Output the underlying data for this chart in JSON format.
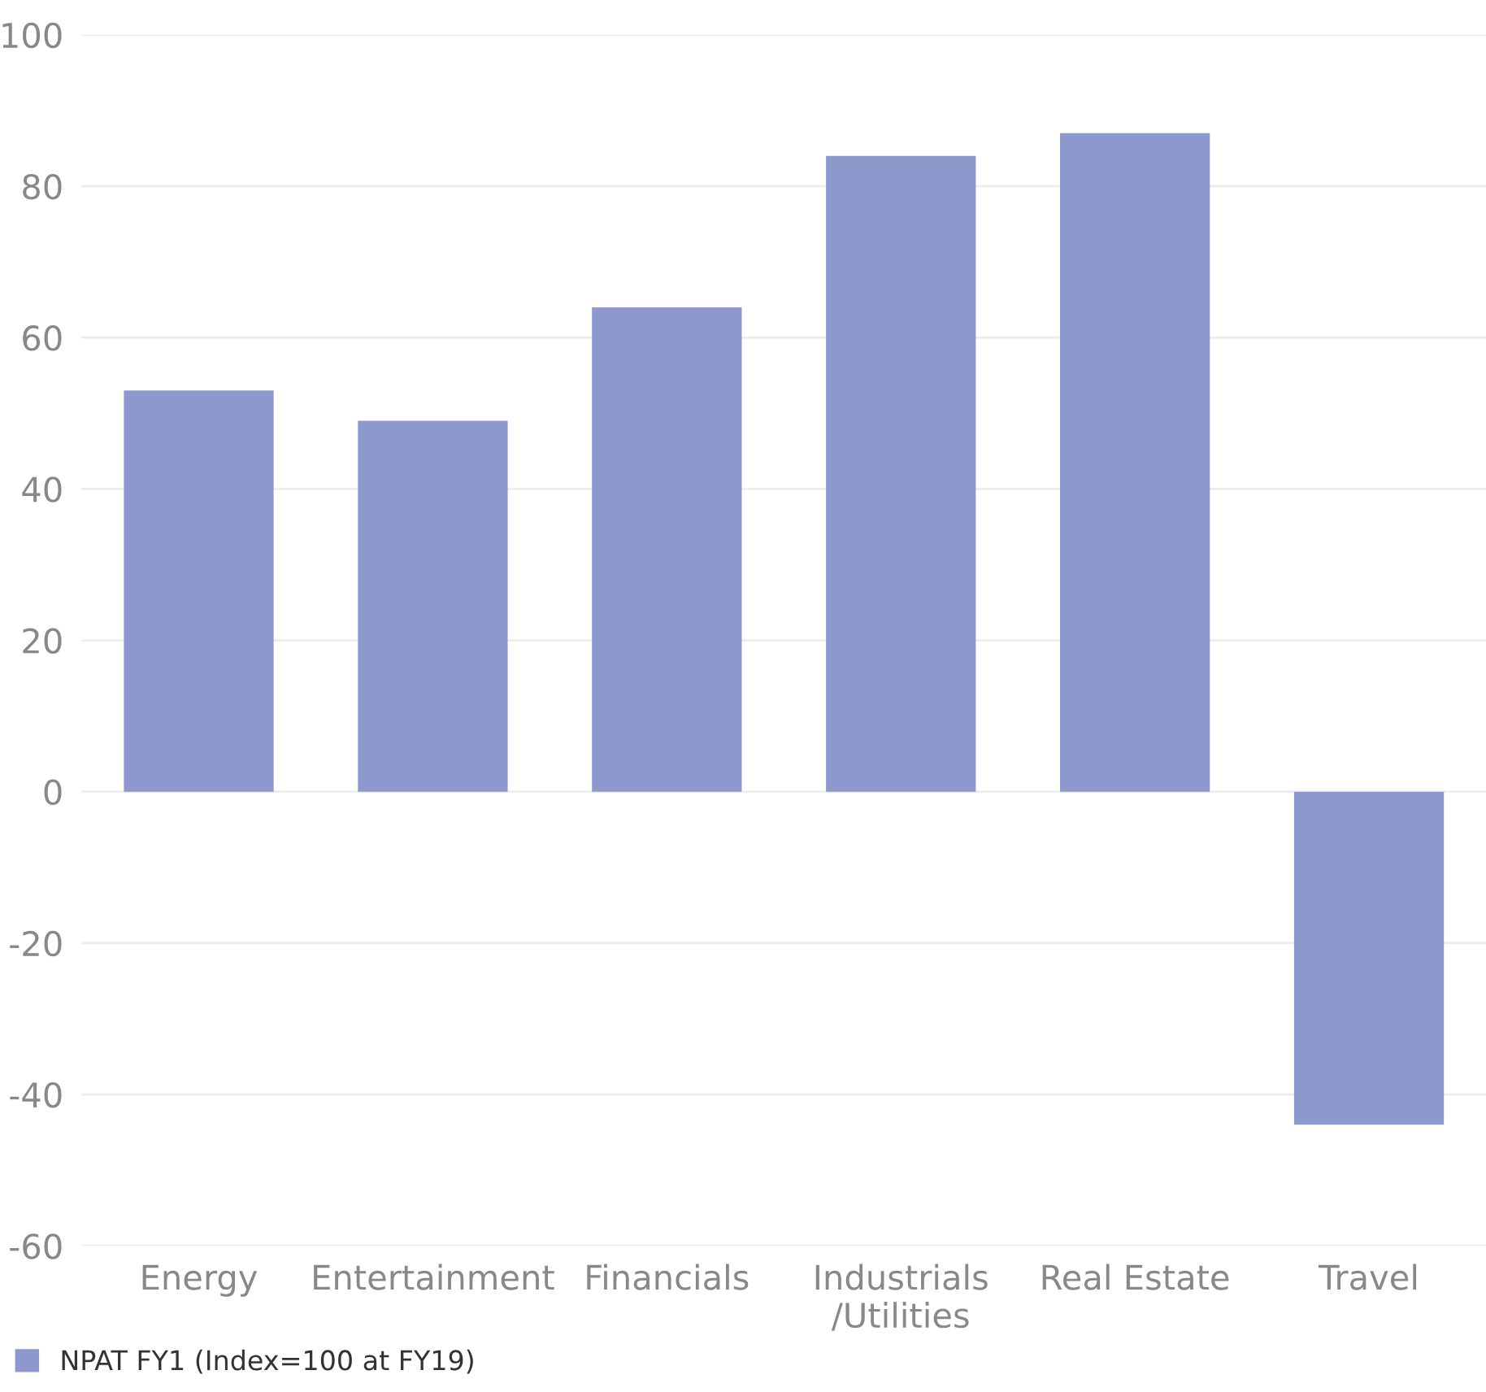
{
  "chart_data": {
    "type": "bar",
    "categories": [
      "Energy",
      "Entertainment",
      "Financials",
      "Industrials\n/Utilities",
      "Real Estate",
      "Travel"
    ],
    "series": [
      {
        "name": "NPAT FY1 (Index=100 at FY19)",
        "color": "#8d98cc",
        "values": [
          53,
          49,
          64,
          84,
          87,
          -44
        ]
      }
    ],
    "ylim": [
      -60,
      100
    ],
    "yticks": [
      -60,
      -40,
      -20,
      0,
      20,
      40,
      60,
      80,
      100
    ],
    "grid": "y",
    "legend": "bottom left"
  }
}
